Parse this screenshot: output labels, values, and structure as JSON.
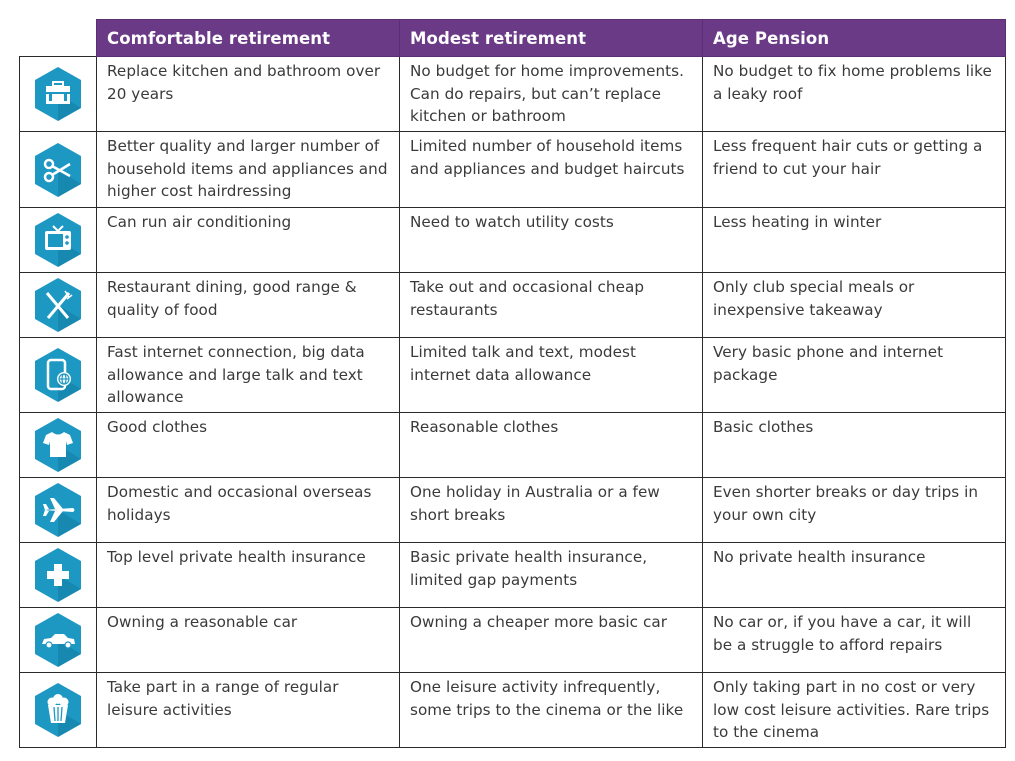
{
  "colors": {
    "header_bg": "#6b3a87",
    "icon_hex": "#1d98c3",
    "icon_hex_dark": "#12799f"
  },
  "header": [
    "Comfortable retirement",
    "Modest retirement",
    "Age Pension"
  ],
  "rows": [
    {
      "icon": "toolbox-icon",
      "cells": [
        "Replace kitchen and bathroom over 20 years",
        "No budget for home improvements. Can do repairs, but can’t replace kitchen or bathroom",
        "No budget to fix home problems like a leaky roof"
      ]
    },
    {
      "icon": "scissors-icon",
      "cells": [
        "Better quality and larger number of household items and appliances and higher cost hairdressing",
        "Limited number of household items and appliances and budget haircuts",
        "Less frequent hair cuts or getting a friend to cut your hair"
      ]
    },
    {
      "icon": "television-icon",
      "cells": [
        "Can run air conditioning",
        "Need to watch utility costs",
        "Less heating in winter"
      ]
    },
    {
      "icon": "knife-fork-icon",
      "cells": [
        "Restaurant dining, good range & quality of food",
        "Take out and occasional cheap restaurants",
        "Only club special meals or inexpensive takeaway"
      ]
    },
    {
      "icon": "phone-internet-icon",
      "cells": [
        "Fast internet connection, big data allowance and large talk and text allowance",
        "Limited talk and text, modest internet data allowance",
        "Very basic phone and internet package"
      ]
    },
    {
      "icon": "t-shirt-icon",
      "cells": [
        "Good clothes",
        "Reasonable clothes",
        "Basic clothes"
      ]
    },
    {
      "icon": "airplane-icon",
      "cells": [
        "Domestic and occasional overseas holidays",
        "One holiday in Australia or a few short breaks",
        "Even shorter breaks or day trips in your own city"
      ]
    },
    {
      "icon": "health-cross-icon",
      "cells": [
        "Top level private health insurance",
        "Basic private health insurance, limited gap payments",
        "No private health insurance"
      ]
    },
    {
      "icon": "car-icon",
      "cells": [
        "Owning a reasonable car",
        "Owning a cheaper more basic car",
        "No car or, if you have a car, it will be a struggle to afford repairs"
      ]
    },
    {
      "icon": "popcorn-icon",
      "cells": [
        "Take part in a range of regular leisure activities",
        "One leisure activity infrequently, some trips to the cinema or the like",
        "Only taking part in no cost or very low cost leisure activities. Rare trips to the cinema"
      ]
    }
  ]
}
